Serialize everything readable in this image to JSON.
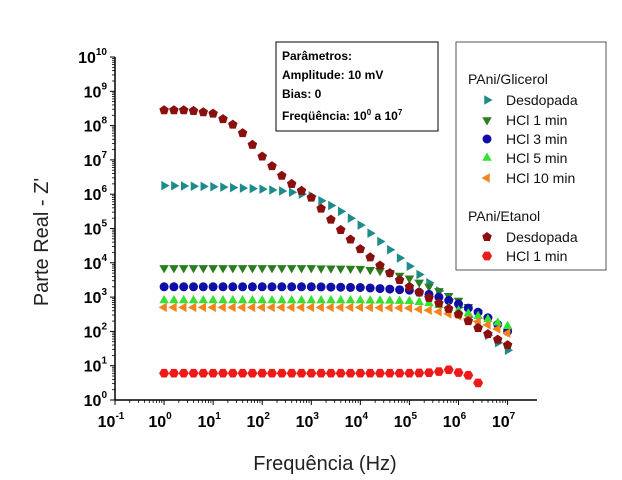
{
  "chart_data": {
    "type": "scatter",
    "xlabel": "Frequência (Hz)",
    "ylabel": "Parte Real - Z'",
    "xscale": "log",
    "yscale": "log",
    "xlim_exp": [
      -1,
      7.6
    ],
    "ylim_exp": [
      0,
      10
    ],
    "xticks_exp": [
      -1,
      0,
      1,
      2,
      3,
      4,
      5,
      6,
      7
    ],
    "yticks_exp": [
      0,
      1,
      2,
      3,
      4,
      5,
      6,
      7,
      8,
      9,
      10
    ],
    "tick_base": "10",
    "grid": false,
    "params_box": {
      "title": "Parâmetros:",
      "amplitude": "Amplitude: 10 mV",
      "bias": "Bias: 0",
      "freq_prefix": "Freqüência: 10",
      "freq_sup1": "0",
      "freq_mid": " a 10",
      "freq_sup2": "7"
    },
    "legend": {
      "placement": "right",
      "group1": "PAni/Glicerol",
      "group2": "PAni/Etanol"
    },
    "series": [
      {
        "name": "Desdopada",
        "group": "PAni/Glicerol",
        "color": "#1e8b8b",
        "marker": "triangle-right",
        "x_exp": [
          0,
          1,
          2,
          2.5,
          3,
          3.5,
          4,
          4.5,
          5,
          5.5,
          6,
          6.5,
          7
        ],
        "y_exp": [
          6.25,
          6.22,
          6.15,
          6.08,
          5.95,
          5.6,
          5.1,
          4.5,
          3.9,
          3.3,
          2.7,
          2.0,
          1.45
        ]
      },
      {
        "name": "HCl 1 min",
        "group": "PAni/Glicerol",
        "color": "#2a7d1e",
        "marker": "triangle-down",
        "x_exp": [
          0,
          1,
          2,
          3,
          4,
          4.5,
          5,
          5.5,
          6,
          6.5,
          7
        ],
        "y_exp": [
          3.85,
          3.85,
          3.85,
          3.85,
          3.83,
          3.75,
          3.55,
          3.25,
          2.9,
          2.45,
          2.0
        ]
      },
      {
        "name": "HCl 3 min",
        "group": "PAni/Glicerol",
        "color": "#0f0fa8",
        "marker": "circle",
        "x_exp": [
          0,
          1,
          2,
          3,
          4,
          5,
          5.5,
          6,
          6.5,
          7
        ],
        "y_exp": [
          3.3,
          3.3,
          3.3,
          3.3,
          3.28,
          3.2,
          3.05,
          2.8,
          2.5,
          2.0
        ]
      },
      {
        "name": "HCl 5 min",
        "group": "PAni/Glicerol",
        "color": "#33e033",
        "marker": "triangle-up",
        "x_exp": [
          0,
          1,
          2,
          3,
          4,
          5,
          5.5,
          6,
          6.5,
          7
        ],
        "y_exp": [
          2.9,
          2.9,
          2.9,
          2.9,
          2.9,
          2.88,
          2.8,
          2.6,
          2.4,
          2.15
        ]
      },
      {
        "name": "HCl 10 min",
        "group": "PAni/Glicerol",
        "color": "#f2841e",
        "marker": "triangle-left",
        "x_exp": [
          0,
          1,
          2,
          3,
          4,
          5,
          5.5,
          6,
          6.5,
          7
        ],
        "y_exp": [
          2.7,
          2.7,
          2.7,
          2.7,
          2.7,
          2.68,
          2.6,
          2.45,
          2.25,
          1.95
        ]
      },
      {
        "name": "Desdopada",
        "group": "PAni/Etanol",
        "color": "#8a0f0f",
        "marker": "pentagon",
        "x_exp": [
          0,
          0.5,
          1,
          1.5,
          2,
          2.5,
          3,
          3.5,
          4,
          4.5,
          5,
          5.5,
          6,
          6.5,
          7
        ],
        "y_exp": [
          8.45,
          8.45,
          8.35,
          7.95,
          7.1,
          6.4,
          5.9,
          5.1,
          4.4,
          3.8,
          3.3,
          2.9,
          2.5,
          2.0,
          1.6
        ]
      },
      {
        "name": "HCl 1 min",
        "group": "PAni/Etanol",
        "color": "#ee1a1a",
        "marker": "hexagon",
        "x_exp": [
          0,
          1,
          2,
          3,
          4,
          5,
          5.5,
          5.8,
          5.9,
          6.0,
          6.2,
          6.4
        ],
        "y_exp": [
          0.78,
          0.78,
          0.78,
          0.78,
          0.78,
          0.78,
          0.8,
          0.88,
          0.95,
          0.8,
          0.72,
          0.5
        ]
      }
    ]
  }
}
